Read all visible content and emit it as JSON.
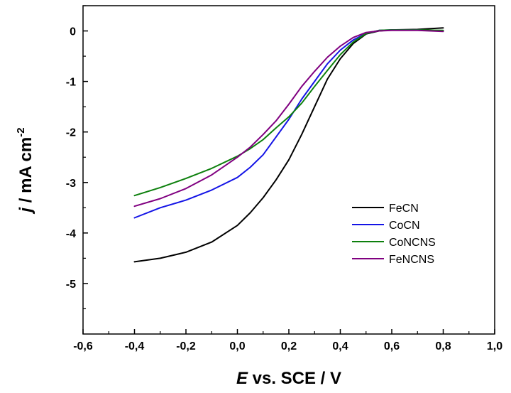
{
  "chart_data": {
    "type": "line",
    "xlabel": {
      "symbol": "E",
      "rest": " vs. SCE / V"
    },
    "ylabel": {
      "symbol": "j",
      "rest": " / mA cm",
      "sup": "-2"
    },
    "xlim": [
      -0.6,
      1.0
    ],
    "ylim": [
      -6.0,
      0.5
    ],
    "x_ticks": [
      -0.6,
      -0.4,
      -0.2,
      0.0,
      0.2,
      0.4,
      0.6,
      0.8,
      1.0
    ],
    "x_tick_labels": [
      "-0,6",
      "-0,4",
      "-0,2",
      "0,0",
      "0,2",
      "0,4",
      "0,6",
      "0,8",
      "1,0"
    ],
    "y_ticks": [
      0,
      -1,
      -2,
      -3,
      -4,
      -5
    ],
    "y_tick_labels": [
      "0",
      "-1",
      "-2",
      "-3",
      "-4",
      "-5"
    ],
    "grid": false,
    "legend_position": "center-right",
    "series": [
      {
        "name": "FeCN",
        "color": "#000000",
        "points": [
          [
            -0.4,
            -4.57
          ],
          [
            -0.3,
            -4.5
          ],
          [
            -0.2,
            -4.38
          ],
          [
            -0.1,
            -4.18
          ],
          [
            0.0,
            -3.85
          ],
          [
            0.05,
            -3.6
          ],
          [
            0.1,
            -3.3
          ],
          [
            0.15,
            -2.95
          ],
          [
            0.2,
            -2.55
          ],
          [
            0.25,
            -2.05
          ],
          [
            0.3,
            -1.5
          ],
          [
            0.35,
            -0.95
          ],
          [
            0.4,
            -0.55
          ],
          [
            0.45,
            -0.25
          ],
          [
            0.5,
            -0.06
          ],
          [
            0.55,
            0.0
          ],
          [
            0.6,
            0.02
          ],
          [
            0.7,
            0.03
          ],
          [
            0.8,
            0.06
          ]
        ]
      },
      {
        "name": "CoCN",
        "color": "#1414e6",
        "points": [
          [
            -0.4,
            -3.7
          ],
          [
            -0.3,
            -3.5
          ],
          [
            -0.2,
            -3.35
          ],
          [
            -0.1,
            -3.15
          ],
          [
            0.0,
            -2.9
          ],
          [
            0.05,
            -2.7
          ],
          [
            0.1,
            -2.45
          ],
          [
            0.15,
            -2.1
          ],
          [
            0.2,
            -1.75
          ],
          [
            0.25,
            -1.35
          ],
          [
            0.3,
            -1.0
          ],
          [
            0.35,
            -0.65
          ],
          [
            0.4,
            -0.38
          ],
          [
            0.45,
            -0.18
          ],
          [
            0.5,
            -0.05
          ],
          [
            0.55,
            0.01
          ],
          [
            0.6,
            0.02
          ],
          [
            0.7,
            0.02
          ],
          [
            0.8,
            0.0
          ]
        ]
      },
      {
        "name": "CoNCNS",
        "color": "#0d800d",
        "points": [
          [
            -0.4,
            -3.26
          ],
          [
            -0.3,
            -3.1
          ],
          [
            -0.2,
            -2.92
          ],
          [
            -0.1,
            -2.72
          ],
          [
            0.0,
            -2.48
          ],
          [
            0.05,
            -2.33
          ],
          [
            0.1,
            -2.15
          ],
          [
            0.15,
            -1.92
          ],
          [
            0.2,
            -1.7
          ],
          [
            0.25,
            -1.43
          ],
          [
            0.3,
            -1.1
          ],
          [
            0.35,
            -0.78
          ],
          [
            0.4,
            -0.47
          ],
          [
            0.45,
            -0.22
          ],
          [
            0.5,
            -0.05
          ],
          [
            0.55,
            0.01
          ],
          [
            0.6,
            0.02
          ],
          [
            0.7,
            0.02
          ],
          [
            0.8,
            0.01
          ]
        ]
      },
      {
        "name": "FeNCNS",
        "color": "#800080",
        "points": [
          [
            -0.4,
            -3.47
          ],
          [
            -0.3,
            -3.32
          ],
          [
            -0.2,
            -3.12
          ],
          [
            -0.1,
            -2.85
          ],
          [
            0.0,
            -2.5
          ],
          [
            0.05,
            -2.3
          ],
          [
            0.1,
            -2.05
          ],
          [
            0.15,
            -1.78
          ],
          [
            0.2,
            -1.45
          ],
          [
            0.25,
            -1.1
          ],
          [
            0.3,
            -0.8
          ],
          [
            0.35,
            -0.52
          ],
          [
            0.4,
            -0.3
          ],
          [
            0.45,
            -0.13
          ],
          [
            0.5,
            -0.03
          ],
          [
            0.55,
            0.0
          ],
          [
            0.6,
            0.01
          ],
          [
            0.7,
            0.01
          ],
          [
            0.8,
            -0.01
          ]
        ]
      }
    ]
  }
}
